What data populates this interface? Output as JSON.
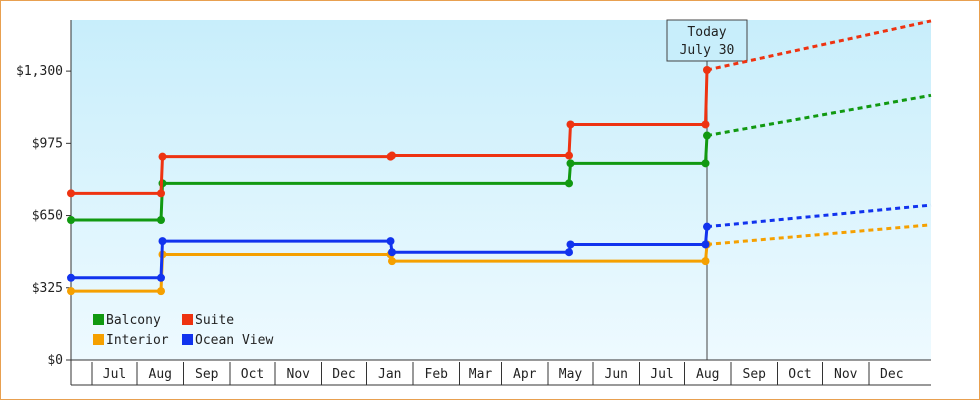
{
  "chart_data": {
    "type": "line",
    "title": "",
    "xlabel": "",
    "ylabel": "",
    "ylim": [
      0,
      1550
    ],
    "yticks": [
      {
        "value": 0,
        "label": "$0"
      },
      {
        "value": 325,
        "label": "$325"
      },
      {
        "value": 650,
        "label": "$650"
      },
      {
        "value": 975,
        "label": "$975"
      },
      {
        "value": 1300,
        "label": "$1,300"
      }
    ],
    "x_range": [
      "2016-06-01",
      "2017-01-31"
    ],
    "months": [
      {
        "label": "Jul",
        "start": "2016-06-15"
      },
      {
        "label": "Aug",
        "start": "2016-07-15"
      },
      {
        "label": "Sep",
        "start": "2016-08-15"
      },
      {
        "label": "Oct",
        "start": "2016-09-15"
      },
      {
        "label": "Nov",
        "start": "2016-10-15"
      },
      {
        "label": "Dec",
        "start": "2016-11-15"
      },
      {
        "label": "Jan",
        "start": "2016-12-15"
      },
      {
        "label": "Feb",
        "start": "2017-01-15"
      },
      {
        "label": "Mar",
        "start": "2017-02-15"
      },
      {
        "label": "Apr",
        "start": "2017-03-15"
      },
      {
        "label": "May",
        "start": "2017-04-15"
      },
      {
        "label": "Jun",
        "start": "2017-05-15"
      },
      {
        "label": "Jul",
        "start": "2017-06-15"
      },
      {
        "label": "Aug",
        "start": "2017-07-15"
      },
      {
        "label": "Sep",
        "start": "2017-08-15"
      },
      {
        "label": "Oct",
        "start": "2017-09-15"
      },
      {
        "label": "Nov",
        "start": "2017-10-15"
      },
      {
        "label": "Dec",
        "start": "2017-11-15"
      }
    ],
    "today": {
      "line1": "Today",
      "line2": "July 30",
      "date": "2017-07-30"
    },
    "grid": false,
    "legend": "bottom-left",
    "series": [
      {
        "name": "Balcony",
        "color": "#119911",
        "points": [
          {
            "date": "2016-06-01",
            "value": 630
          },
          {
            "date": "2016-07-31",
            "value": 630
          },
          {
            "date": "2016-08-01",
            "value": 795
          },
          {
            "date": "2017-04-29",
            "value": 795
          },
          {
            "date": "2017-04-30",
            "value": 885
          },
          {
            "date": "2017-07-29",
            "value": 885
          },
          {
            "date": "2017-07-30",
            "value": 1010
          }
        ],
        "forecast": [
          {
            "date": "2017-07-30",
            "value": 1010
          },
          {
            "date": "2018-01-15",
            "value": 1215
          }
        ]
      },
      {
        "name": "Suite",
        "color": "#ee3311",
        "points": [
          {
            "date": "2016-06-01",
            "value": 750
          },
          {
            "date": "2016-07-31",
            "value": 750
          },
          {
            "date": "2016-08-01",
            "value": 915
          },
          {
            "date": "2016-12-31",
            "value": 915
          },
          {
            "date": "2017-01-01",
            "value": 920
          },
          {
            "date": "2017-04-29",
            "value": 920
          },
          {
            "date": "2017-04-30",
            "value": 1060
          },
          {
            "date": "2017-07-29",
            "value": 1060
          },
          {
            "date": "2017-07-30",
            "value": 1305
          }
        ],
        "forecast": [
          {
            "date": "2017-07-30",
            "value": 1305
          },
          {
            "date": "2018-01-15",
            "value": 1555
          }
        ]
      },
      {
        "name": "Interior",
        "color": "#f5a000",
        "points": [
          {
            "date": "2016-06-01",
            "value": 310
          },
          {
            "date": "2016-07-31",
            "value": 310
          },
          {
            "date": "2016-08-01",
            "value": 475
          },
          {
            "date": "2016-12-31",
            "value": 475
          },
          {
            "date": "2017-01-01",
            "value": 445
          },
          {
            "date": "2017-07-29",
            "value": 445
          },
          {
            "date": "2017-07-30",
            "value": 520
          }
        ],
        "forecast": [
          {
            "date": "2017-07-30",
            "value": 520
          },
          {
            "date": "2018-01-15",
            "value": 620
          }
        ]
      },
      {
        "name": "Ocean View",
        "color": "#1133ee",
        "points": [
          {
            "date": "2016-06-01",
            "value": 370
          },
          {
            "date": "2016-07-31",
            "value": 370
          },
          {
            "date": "2016-08-01",
            "value": 535
          },
          {
            "date": "2016-12-31",
            "value": 535
          },
          {
            "date": "2017-01-01",
            "value": 485
          },
          {
            "date": "2017-04-29",
            "value": 485
          },
          {
            "date": "2017-04-30",
            "value": 520
          },
          {
            "date": "2017-07-29",
            "value": 520
          },
          {
            "date": "2017-07-30",
            "value": 600
          }
        ],
        "forecast": [
          {
            "date": "2017-07-30",
            "value": 600
          },
          {
            "date": "2018-01-15",
            "value": 710
          }
        ]
      }
    ]
  }
}
